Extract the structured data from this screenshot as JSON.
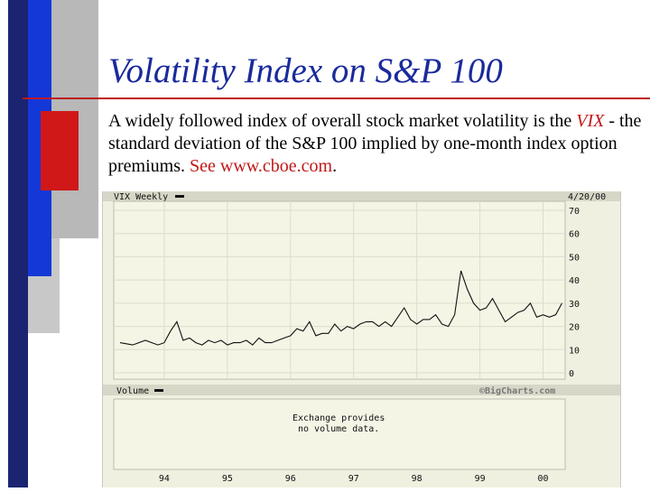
{
  "slide": {
    "title": "Volatility Index on S&P 100",
    "body_pre": "A widely followed index of overall stock market volatility is the ",
    "vix": "VIX",
    "body_mid": " - the standard deviation of the S&P 100 implied by one-month index option premiums. ",
    "see_link": "See www.cboe.com",
    "body_end": "."
  },
  "colors": {
    "title": "#1a2a9c",
    "accent_red": "#c01818",
    "deco_blue": "#1438d8",
    "deco_navy": "#1a2470",
    "chart_bg": "#f0f0e0",
    "plot_bg": "#f5f5e6",
    "band": "#d7d7c8",
    "line": "#111111"
  },
  "chart_data": {
    "type": "line",
    "title": "VIX Weekly",
    "date_label": "4/20/00",
    "watermark": "©BigCharts.com",
    "volume_label": "Volume",
    "volume_note_line1": "Exchange provides",
    "volume_note_line2": "no volume data.",
    "xlabel": "",
    "ylabel": "",
    "ylim": [
      0,
      70
    ],
    "yticks": [
      "70",
      "60",
      "50",
      "40",
      "30",
      "20",
      "10",
      "0"
    ],
    "xticks": [
      "94",
      "95",
      "96",
      "97",
      "98",
      "99",
      "00"
    ],
    "grid": true,
    "legend": "none",
    "series": [
      {
        "x": [
          1993.3,
          1993.5,
          1993.7,
          1993.9,
          1994.0,
          1994.1,
          1994.2,
          1994.3,
          1994.4,
          1994.5,
          1994.6,
          1994.7,
          1994.8,
          1994.9,
          1995.0,
          1995.1,
          1995.2,
          1995.3,
          1995.4,
          1995.5,
          1995.6,
          1995.7,
          1995.8,
          1995.9,
          1996.0,
          1996.1,
          1996.2,
          1996.3,
          1996.4,
          1996.5,
          1996.6,
          1996.7,
          1996.8,
          1996.9,
          1997.0,
          1997.1,
          1997.2,
          1997.3,
          1997.4,
          1997.5,
          1997.6,
          1997.7,
          1997.8,
          1997.9,
          1998.0,
          1998.1,
          1998.2,
          1998.3,
          1998.4,
          1998.5,
          1998.6,
          1998.7,
          1998.8,
          1998.9,
          1999.0,
          1999.1,
          1999.2,
          1999.3,
          1999.4,
          1999.5,
          1999.6,
          1999.7,
          1999.8,
          1999.9,
          2000.0,
          2000.1,
          2000.2,
          2000.3
        ],
        "y": [
          13,
          12,
          14,
          12,
          13,
          18,
          22,
          14,
          15,
          13,
          12,
          14,
          13,
          14,
          12,
          13,
          13,
          14,
          12,
          15,
          13,
          13,
          14,
          15,
          16,
          19,
          18,
          22,
          16,
          17,
          17,
          21,
          18,
          20,
          19,
          21,
          22,
          22,
          20,
          22,
          20,
          24,
          28,
          23,
          21,
          23,
          23,
          25,
          21,
          20,
          25,
          44,
          36,
          30,
          27,
          28,
          32,
          27,
          22,
          24,
          26,
          27,
          30,
          24,
          25,
          24,
          25,
          30
        ]
      }
    ]
  }
}
